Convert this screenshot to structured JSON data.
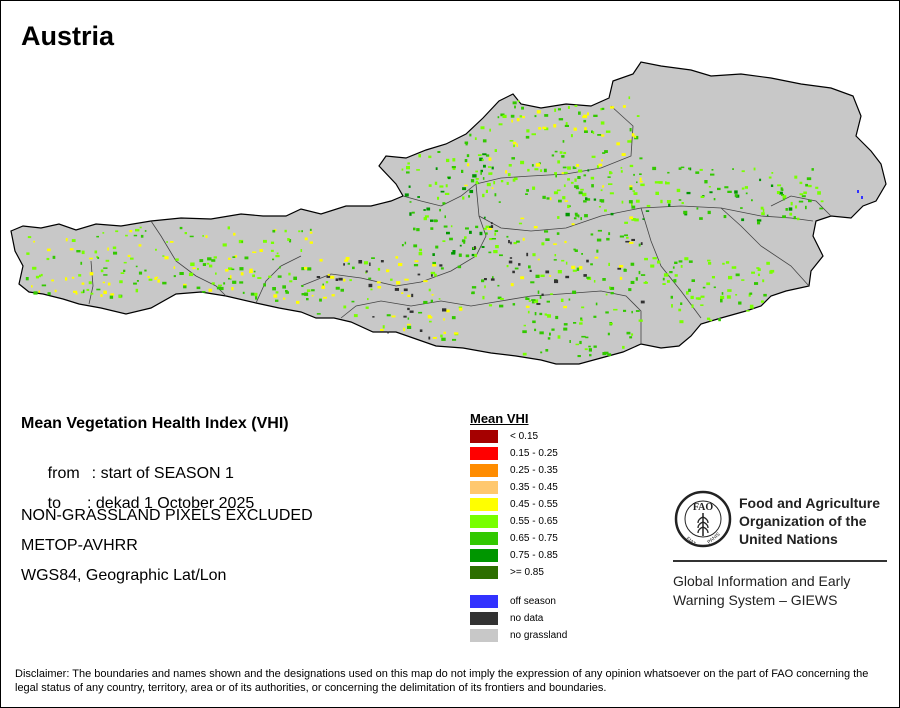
{
  "title": "Austria",
  "info": {
    "heading": "Mean Vegetation Health Index (VHI)",
    "from_label": "from",
    "from_value": ": start of SEASON 1",
    "to_label": "to",
    "to_value": ": dekad 1 October 2025",
    "note": "NON-GRASSLAND PIXELS EXCLUDED",
    "sensor": "METOP-AVHRR",
    "projection": "WGS84, Geographic Lat/Lon"
  },
  "legend": {
    "title": "Mean VHI",
    "classes": [
      {
        "label": "< 0.15",
        "color": "#a50000"
      },
      {
        "label": "0.15 - 0.25",
        "color": "#ff0000"
      },
      {
        "label": "0.25 - 0.35",
        "color": "#ff8c00"
      },
      {
        "label": "0.35 - 0.45",
        "color": "#ffc86e"
      },
      {
        "label": "0.45 - 0.55",
        "color": "#ffff00"
      },
      {
        "label": "0.55 - 0.65",
        "color": "#78ff00"
      },
      {
        "label": "0.65 - 0.75",
        "color": "#32c800"
      },
      {
        "label": "0.75 - 0.85",
        "color": "#009600"
      },
      {
        "label": ">= 0.85",
        "color": "#2d6e00"
      }
    ],
    "extra": [
      {
        "label": "off season",
        "color": "#3232ff"
      },
      {
        "label": "no data",
        "color": "#323232"
      },
      {
        "label": "no grassland",
        "color": "#c8c8c8"
      }
    ]
  },
  "map_colors": {
    "land": "#c8c8c8",
    "border": "#000000",
    "internal_border": "#555555"
  },
  "organization": {
    "name_line1": "Food and Agriculture",
    "name_line2": "Organization of the",
    "name_line3": "United Nations",
    "logo_text": "FAO",
    "logo_ring_text_left": "FIAT",
    "logo_ring_text_right": "PANIS",
    "system_line1": "Global Information and Early",
    "system_line2": "Warning System – GIEWS"
  },
  "disclaimer": "Disclaimer: The boundaries and names shown and the designations used on this map do not imply the expression of any opinion whatsoever on the part of FAO concerning the legal status of any country, territory, area or of its authorities, or concerning the delimitation of its frontiers and boundaries."
}
